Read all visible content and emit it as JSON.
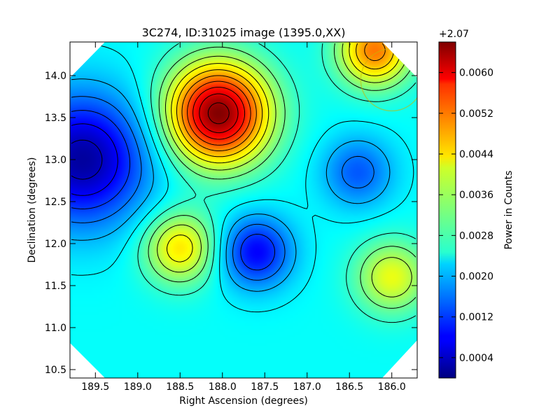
{
  "chart_data": {
    "type": "heatmap",
    "title": "3C274, ID:31025 image (1395.0,XX)",
    "xlabel": "Right Ascension (degrees)",
    "ylabel": "Declination (degrees)",
    "xlim": [
      189.8,
      185.7
    ],
    "ylim": [
      10.4,
      14.4
    ],
    "x_ticks": [
      189.5,
      189.0,
      188.5,
      188.0,
      187.5,
      187.0,
      186.5,
      186.0
    ],
    "x_tick_labels": [
      "189.5",
      "189.0",
      "188.5",
      "188.0",
      "187.5",
      "187.0",
      "186.5",
      "186.0"
    ],
    "y_ticks": [
      10.5,
      11.0,
      11.5,
      12.0,
      12.5,
      13.0,
      13.5,
      14.0
    ],
    "y_tick_labels": [
      "10.5",
      "11.0",
      "11.5",
      "12.0",
      "12.5",
      "13.0",
      "13.5",
      "14.0"
    ],
    "colormap": "jet",
    "grid": false,
    "colorbar": {
      "label": "Power in Counts",
      "offset_text": "+2.07",
      "vmin": 0.0,
      "vmax": 0.0066,
      "ticks": [
        0.0004,
        0.0012,
        0.002,
        0.0028,
        0.0036,
        0.0044,
        0.0052,
        0.006
      ],
      "tick_labels": [
        "0.0004",
        "0.0012",
        "0.0020",
        "0.0028",
        "0.0036",
        "0.0044",
        "0.0052",
        "0.0060"
      ]
    },
    "background_level": 0.0025,
    "features": [
      {
        "kind": "maximum",
        "ra": 188.05,
        "dec": 13.55,
        "value": 0.0066
      },
      {
        "kind": "minimum",
        "ra": 189.65,
        "dec": 13.0,
        "value": 0.0002
      },
      {
        "kind": "minimum",
        "ra": 187.6,
        "dec": 11.9,
        "value": 0.0008
      },
      {
        "kind": "minimum",
        "ra": 186.4,
        "dec": 12.85,
        "value": 0.0014
      },
      {
        "kind": "maximum",
        "ra": 188.5,
        "dec": 11.95,
        "value": 0.0043
      },
      {
        "kind": "maximum",
        "ra": 186.0,
        "dec": 11.6,
        "value": 0.004
      },
      {
        "kind": "maximum",
        "ra": 186.2,
        "dec": 14.3,
        "value": 0.005
      }
    ],
    "source_circle": {
      "ra": 186.0,
      "dec": 13.95,
      "radius_deg": 0.37,
      "color": "#c8b400"
    }
  }
}
